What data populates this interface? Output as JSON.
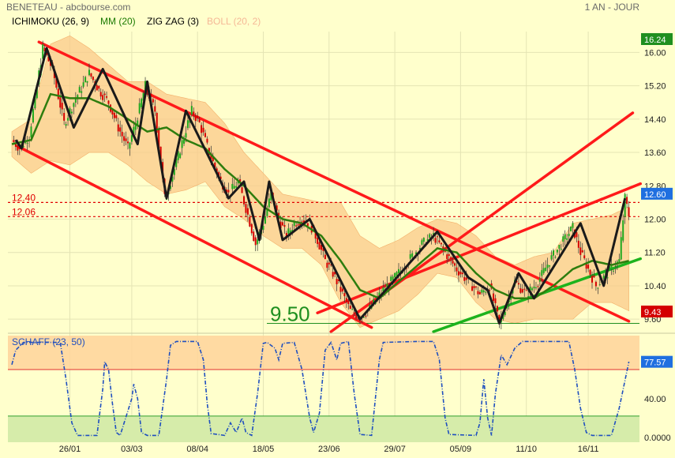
{
  "header": {
    "title": "BENETEAU - abcbourse.com",
    "period": "1 AN - JOUR"
  },
  "legend": [
    {
      "label": "ICHIMOKU (26, 9)",
      "color": "#000000"
    },
    {
      "label": "MM (20)",
      "color": "#1a7a00"
    },
    {
      "label": "ZIG ZAG (3)",
      "color": "#000000"
    },
    {
      "label": "BOLL (20, 2)",
      "color": "#f5b896"
    }
  ],
  "chart_data": [
    {
      "type": "candlestick",
      "title": "",
      "ylim": [
        9.3,
        16.5
      ],
      "y_ticks": [
        "16.00",
        "15.20",
        "14.40",
        "13.60",
        "12.80",
        "12.00",
        "11.20",
        "10.40",
        "9.60"
      ],
      "x_ticks": [
        "26/01",
        "03/03",
        "08/04",
        "18/05",
        "23/06",
        "29/07",
        "05/09",
        "11/10",
        "16/11"
      ],
      "last_price": "12.60",
      "period_high": "16.24",
      "period_low": "9.43",
      "levels": [
        {
          "label": "12.40",
          "value": 12.4
        },
        {
          "label": "12.06",
          "value": 12.06
        }
      ],
      "support_label": "9.50",
      "support_value": 9.5,
      "price_anchors": [
        [
          0,
          13.9
        ],
        [
          4,
          13.7
        ],
        [
          9,
          14.0
        ],
        [
          16,
          16.1
        ],
        [
          21,
          15.6
        ],
        [
          27,
          14.3
        ],
        [
          33,
          14.9
        ],
        [
          40,
          15.5
        ],
        [
          45,
          15.1
        ],
        [
          50,
          14.8
        ],
        [
          55,
          14.2
        ],
        [
          60,
          13.7
        ],
        [
          64,
          14.3
        ],
        [
          69,
          15.2
        ],
        [
          74,
          14.6
        ],
        [
          79,
          12.5
        ],
        [
          84,
          13.2
        ],
        [
          89,
          14.0
        ],
        [
          93,
          14.6
        ],
        [
          97,
          14.3
        ],
        [
          102,
          13.6
        ],
        [
          107,
          13.0
        ],
        [
          112,
          12.6
        ],
        [
          117,
          12.9
        ],
        [
          122,
          12.1
        ],
        [
          126,
          11.4
        ],
        [
          130,
          11.9
        ],
        [
          134,
          12.6
        ],
        [
          138,
          12.0
        ],
        [
          142,
          11.6
        ],
        [
          146,
          11.9
        ],
        [
          150,
          12.0
        ],
        [
          154,
          11.9
        ],
        [
          158,
          11.5
        ],
        [
          162,
          11.0
        ],
        [
          166,
          10.7
        ],
        [
          170,
          10.3
        ],
        [
          175,
          9.8
        ],
        [
          180,
          9.65
        ],
        [
          186,
          9.9
        ],
        [
          192,
          10.3
        ],
        [
          198,
          10.6
        ],
        [
          205,
          11.0
        ],
        [
          212,
          11.4
        ],
        [
          218,
          11.6
        ],
        [
          224,
          11.2
        ],
        [
          230,
          10.8
        ],
        [
          236,
          10.5
        ],
        [
          242,
          10.2
        ],
        [
          247,
          10.4
        ],
        [
          252,
          9.5
        ],
        [
          256,
          10.0
        ],
        [
          260,
          10.5
        ],
        [
          266,
          10.2
        ],
        [
          272,
          10.5
        ],
        [
          278,
          11.0
        ],
        [
          284,
          11.4
        ],
        [
          290,
          11.8
        ],
        [
          294,
          11.2
        ],
        [
          298,
          10.8
        ],
        [
          302,
          10.4
        ],
        [
          306,
          10.6
        ],
        [
          310,
          10.8
        ],
        [
          314,
          11.0
        ],
        [
          317,
          12.5
        ],
        [
          319,
          12.1
        ]
      ],
      "mm20": [
        [
          0,
          13.8
        ],
        [
          10,
          13.9
        ],
        [
          20,
          15.0
        ],
        [
          30,
          14.9
        ],
        [
          40,
          14.9
        ],
        [
          50,
          14.7
        ],
        [
          60,
          14.4
        ],
        [
          70,
          14.1
        ],
        [
          80,
          14.2
        ],
        [
          90,
          13.9
        ],
        [
          100,
          13.7
        ],
        [
          110,
          13.2
        ],
        [
          120,
          12.8
        ],
        [
          130,
          12.3
        ],
        [
          140,
          12.0
        ],
        [
          150,
          11.9
        ],
        [
          160,
          11.6
        ],
        [
          170,
          11.0
        ],
        [
          180,
          10.3
        ],
        [
          190,
          10.1
        ],
        [
          200,
          10.5
        ],
        [
          210,
          10.9
        ],
        [
          220,
          11.3
        ],
        [
          230,
          11.2
        ],
        [
          240,
          10.7
        ],
        [
          250,
          10.3
        ],
        [
          260,
          10.1
        ],
        [
          270,
          10.1
        ],
        [
          280,
          10.4
        ],
        [
          290,
          10.8
        ],
        [
          300,
          11.0
        ],
        [
          310,
          10.9
        ],
        [
          319,
          11.0
        ]
      ],
      "zigzag": [
        [
          2,
          13.9
        ],
        [
          5,
          13.7
        ],
        [
          18,
          16.1
        ],
        [
          32,
          14.2
        ],
        [
          47,
          15.6
        ],
        [
          65,
          13.8
        ],
        [
          70,
          15.3
        ],
        [
          80,
          12.5
        ],
        [
          90,
          14.6
        ],
        [
          106,
          13.1
        ],
        [
          112,
          12.5
        ],
        [
          120,
          12.9
        ],
        [
          128,
          11.5
        ],
        [
          133,
          12.9
        ],
        [
          140,
          11.5
        ],
        [
          154,
          12.0
        ],
        [
          180,
          9.6
        ],
        [
          220,
          11.7
        ],
        [
          236,
          10.6
        ],
        [
          246,
          10.3
        ],
        [
          252,
          9.5
        ],
        [
          262,
          10.7
        ],
        [
          270,
          10.1
        ],
        [
          294,
          11.9
        ],
        [
          306,
          10.4
        ],
        [
          317,
          12.5
        ]
      ],
      "boll_upper": [
        [
          0,
          14.1
        ],
        [
          10,
          14.4
        ],
        [
          20,
          16.2
        ],
        [
          30,
          16.4
        ],
        [
          40,
          16.1
        ],
        [
          50,
          15.7
        ],
        [
          60,
          15.3
        ],
        [
          70,
          15.3
        ],
        [
          80,
          15.0
        ],
        [
          90,
          14.9
        ],
        [
          100,
          14.8
        ],
        [
          110,
          14.3
        ],
        [
          120,
          13.6
        ],
        [
          130,
          13.1
        ],
        [
          140,
          12.6
        ],
        [
          150,
          12.5
        ],
        [
          160,
          12.4
        ],
        [
          170,
          12.4
        ],
        [
          180,
          11.6
        ],
        [
          190,
          11.3
        ],
        [
          200,
          11.5
        ],
        [
          210,
          11.8
        ],
        [
          220,
          12.0
        ],
        [
          230,
          11.9
        ],
        [
          240,
          11.6
        ],
        [
          250,
          11.1
        ],
        [
          260,
          10.9
        ],
        [
          270,
          11.1
        ],
        [
          280,
          11.2
        ],
        [
          290,
          11.9
        ],
        [
          300,
          12.0
        ],
        [
          310,
          12.1
        ],
        [
          319,
          12.3
        ]
      ],
      "boll_lower": [
        [
          0,
          13.5
        ],
        [
          10,
          13.1
        ],
        [
          20,
          13.4
        ],
        [
          30,
          13.3
        ],
        [
          40,
          13.6
        ],
        [
          50,
          13.6
        ],
        [
          60,
          13.3
        ],
        [
          70,
          12.9
        ],
        [
          80,
          12.6
        ],
        [
          90,
          12.7
        ],
        [
          100,
          12.9
        ],
        [
          110,
          12.3
        ],
        [
          120,
          12.0
        ],
        [
          130,
          11.6
        ],
        [
          140,
          11.3
        ],
        [
          150,
          11.3
        ],
        [
          160,
          10.9
        ],
        [
          170,
          10.0
        ],
        [
          180,
          9.4
        ],
        [
          190,
          9.6
        ],
        [
          200,
          9.8
        ],
        [
          210,
          10.2
        ],
        [
          220,
          10.7
        ],
        [
          230,
          10.6
        ],
        [
          240,
          10.0
        ],
        [
          250,
          9.6
        ],
        [
          260,
          9.5
        ],
        [
          270,
          9.6
        ],
        [
          280,
          9.6
        ],
        [
          290,
          9.6
        ],
        [
          300,
          10.0
        ],
        [
          310,
          10.0
        ],
        [
          319,
          9.8
        ]
      ],
      "lines": [
        {
          "color": "#ff1a1a",
          "points": [
            [
              14,
              16.25
            ],
            [
              319,
              9.55
            ]
          ]
        },
        {
          "color": "#ff1a1a",
          "points": [
            [
              3,
              13.75
            ],
            [
              186,
              9.4
            ]
          ]
        },
        {
          "color": "#ff1a1a",
          "points": [
            [
              165,
              9.3
            ],
            [
              321,
              14.55
            ]
          ]
        },
        {
          "color": "#ff1a1a",
          "points": [
            [
              158,
              9.75
            ],
            [
              325,
              12.85
            ]
          ]
        },
        {
          "color": "#1db31d",
          "points": [
            [
              218,
              9.3
            ],
            [
              325,
              11.05
            ]
          ]
        }
      ]
    },
    {
      "type": "line",
      "title": "SCHAFF (23, 50)",
      "ylim": [
        -5,
        105
      ],
      "y_ticks": [
        "40.00",
        "0.0000"
      ],
      "last_value": "77.57",
      "upper_band": 70,
      "lower_band": 22,
      "values": [
        [
          0,
          75
        ],
        [
          2,
          90
        ],
        [
          6,
          98
        ],
        [
          25,
          98
        ],
        [
          28,
          60
        ],
        [
          31,
          15
        ],
        [
          34,
          2
        ],
        [
          44,
          2
        ],
        [
          47,
          50
        ],
        [
          48,
          78
        ],
        [
          50,
          70
        ],
        [
          52,
          35
        ],
        [
          54,
          5
        ],
        [
          56,
          2
        ],
        [
          62,
          40
        ],
        [
          63,
          55
        ],
        [
          65,
          40
        ],
        [
          67,
          5
        ],
        [
          70,
          2
        ],
        [
          76,
          2
        ],
        [
          80,
          60
        ],
        [
          82,
          95
        ],
        [
          85,
          99
        ],
        [
          96,
          99
        ],
        [
          99,
          80
        ],
        [
          101,
          35
        ],
        [
          103,
          4
        ],
        [
          110,
          2
        ],
        [
          113,
          15
        ],
        [
          116,
          5
        ],
        [
          119,
          20
        ],
        [
          121,
          5
        ],
        [
          124,
          2
        ],
        [
          127,
          45
        ],
        [
          130,
          97
        ],
        [
          132,
          98
        ],
        [
          136,
          92
        ],
        [
          138,
          80
        ],
        [
          140,
          97
        ],
        [
          146,
          98
        ],
        [
          150,
          70
        ],
        [
          154,
          20
        ],
        [
          156,
          5
        ],
        [
          159,
          25
        ],
        [
          162,
          90
        ],
        [
          165,
          98
        ],
        [
          168,
          80
        ],
        [
          170,
          97
        ],
        [
          174,
          99
        ],
        [
          177,
          45
        ],
        [
          180,
          3
        ],
        [
          186,
          2
        ],
        [
          190,
          80
        ],
        [
          192,
          98
        ],
        [
          210,
          99
        ],
        [
          218,
          99
        ],
        [
          221,
          80
        ],
        [
          224,
          20
        ],
        [
          226,
          3
        ],
        [
          240,
          2
        ],
        [
          242,
          15
        ],
        [
          244,
          60
        ],
        [
          246,
          20
        ],
        [
          248,
          2
        ],
        [
          250,
          45
        ],
        [
          253,
          85
        ],
        [
          256,
          75
        ],
        [
          260,
          92
        ],
        [
          264,
          99
        ],
        [
          276,
          99
        ],
        [
          282,
          99
        ],
        [
          288,
          99
        ],
        [
          291,
          70
        ],
        [
          294,
          30
        ],
        [
          297,
          5
        ],
        [
          300,
          2
        ],
        [
          310,
          2
        ],
        [
          314,
          30
        ],
        [
          319,
          78
        ]
      ]
    }
  ]
}
